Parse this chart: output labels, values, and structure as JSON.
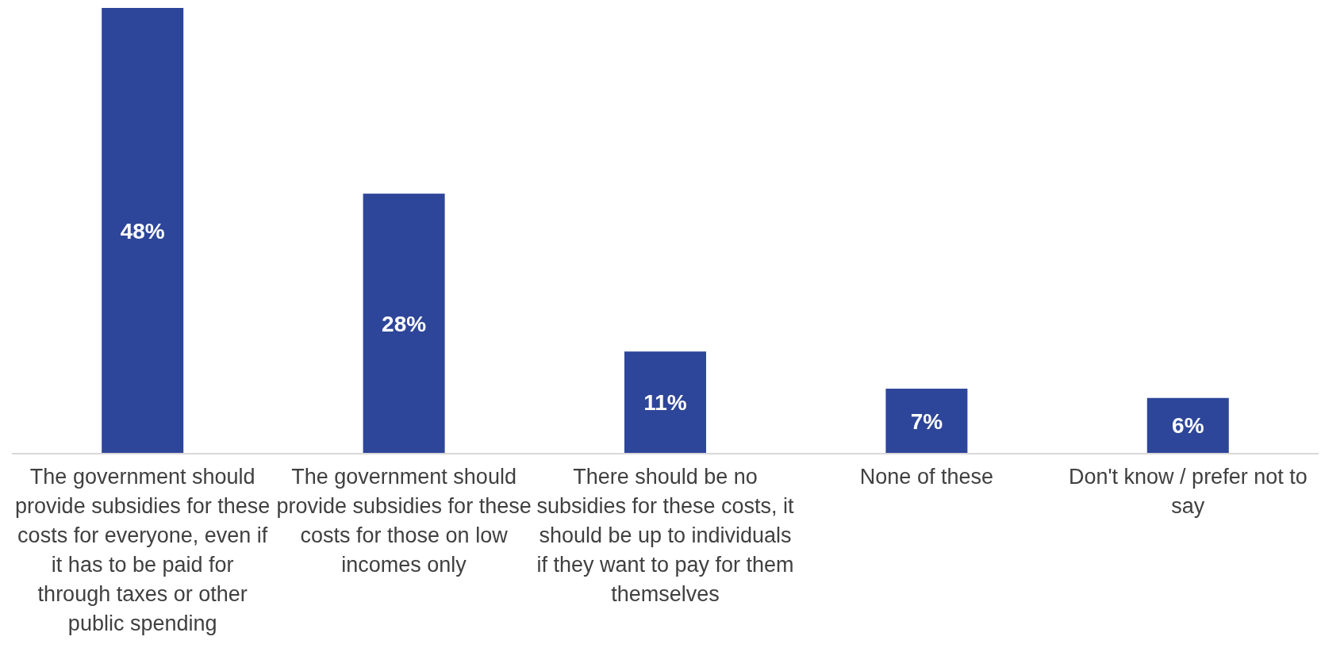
{
  "chart_data": {
    "type": "bar",
    "categories": [
      "The government should provide subsidies for these costs for everyone, even if it has to be paid for through taxes or other public spending",
      "The government should provide subsidies for these costs for those on low incomes only",
      "There should be no subsidies for these costs, it should be up to individuals if they want to pay for them themselves",
      "None of these",
      "Don't know / prefer not to say"
    ],
    "values": [
      48,
      28,
      11,
      7,
      6
    ],
    "value_labels": [
      "48%",
      "28%",
      "11%",
      "7%",
      "6%"
    ],
    "color": "#2e4699"
  }
}
